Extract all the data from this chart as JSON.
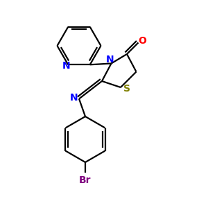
{
  "bg_color": "#ffffff",
  "atom_colors": {
    "C": "#000000",
    "N": "#0000ff",
    "O": "#ff0000",
    "S": "#808000",
    "Br": "#800080"
  },
  "figsize": [
    3.0,
    3.0
  ],
  "dpi": 100
}
